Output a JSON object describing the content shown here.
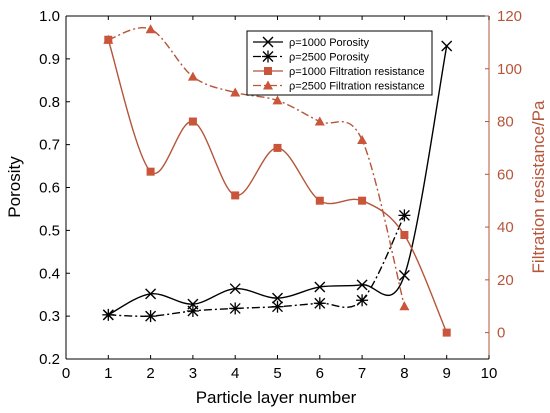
{
  "chart_data": {
    "type": "line",
    "xlabel": "Particle layer number",
    "ylabel": "Porosity",
    "y2label": "Filtration resistance/Pa",
    "xlim": [
      0,
      10
    ],
    "ylim": [
      0.2,
      1.0
    ],
    "y2lim": [
      -10,
      120
    ],
    "xticks": [
      0,
      1,
      2,
      3,
      4,
      5,
      6,
      7,
      8,
      9,
      10
    ],
    "yticks": [
      0.2,
      0.3,
      0.4,
      0.5,
      0.6,
      0.7,
      0.8,
      0.9,
      1.0
    ],
    "ytick_labels": [
      "0.2",
      "0.3",
      "0.4",
      "0.5",
      "0.6",
      "0.7",
      "0.8",
      "0.9",
      "1.0"
    ],
    "y2ticks": [
      0,
      20,
      40,
      60,
      80,
      100,
      120
    ],
    "grid": false,
    "legend_position": "top-right",
    "series": [
      {
        "name": "ρ=1000 Porosity",
        "axis": "left",
        "x": [
          1,
          2,
          3,
          4,
          5,
          6,
          7,
          8,
          9
        ],
        "y": [
          0.303,
          0.352,
          0.328,
          0.364,
          0.342,
          0.368,
          0.373,
          0.395,
          0.93
        ],
        "color": "#000000",
        "marker": "x",
        "linestyle": "solid"
      },
      {
        "name": "ρ=2500 Porosity",
        "axis": "left",
        "x": [
          1,
          2,
          3,
          4,
          5,
          6,
          7,
          8
        ],
        "y": [
          0.303,
          0.3,
          0.312,
          0.318,
          0.322,
          0.33,
          0.337,
          0.535
        ],
        "color": "#000000",
        "marker": "asterisk",
        "linestyle": "dashdot"
      },
      {
        "name": "ρ=1000 Filtration resistance",
        "axis": "right",
        "x": [
          1,
          2,
          3,
          4,
          5,
          6,
          7,
          8,
          9
        ],
        "y": [
          111,
          61,
          80,
          52,
          70,
          50,
          50,
          37,
          0
        ],
        "color": "#b5553a",
        "marker": "square",
        "linestyle": "solid"
      },
      {
        "name": "ρ=2500 Filtration resistance",
        "axis": "right",
        "x": [
          1,
          2,
          3,
          4,
          5,
          6,
          7,
          8
        ],
        "y": [
          111,
          115,
          97,
          91,
          88,
          80,
          73,
          10
        ],
        "color": "#b5553a",
        "marker": "triangle",
        "linestyle": "dashdot"
      }
    ]
  }
}
